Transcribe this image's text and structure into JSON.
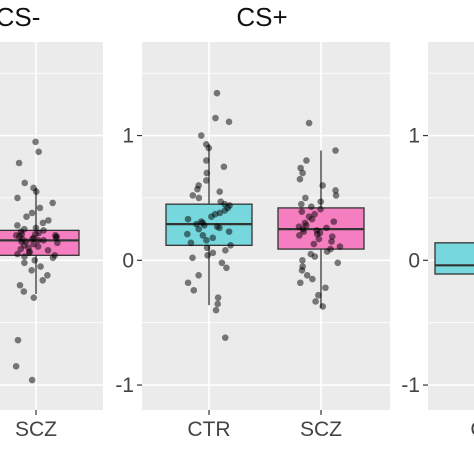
{
  "chart_data": {
    "type": "boxplot",
    "title": "",
    "xlabel": "",
    "ylabel": "",
    "ylim": [
      -1.2,
      1.75
    ],
    "y_ticks": [
      -1,
      0,
      1
    ],
    "y_tick_labels": [
      "-1",
      "0",
      "1"
    ],
    "grid": true,
    "legend": "none",
    "colors": {
      "CTR": "#76d7dc",
      "SCZ": "#f47ec0",
      "panel_bg": "#ebebeb",
      "grid": "#ffffff",
      "points": "#000000"
    },
    "panels": [
      {
        "title": "CS-",
        "show_y_axis": false,
        "boxes": [
          {
            "category": "SCZ",
            "group": "SCZ",
            "lower_whisker": -0.27,
            "q1": 0.04,
            "median": 0.16,
            "q3": 0.24,
            "upper_whisker": 0.58,
            "points": [
              0.95,
              0.87,
              0.78,
              0.62,
              0.58,
              0.55,
              0.5,
              0.46,
              0.42,
              0.38,
              0.35,
              0.32,
              0.3,
              0.28,
              0.26,
              0.25,
              0.24,
              0.23,
              0.22,
              0.21,
              0.21,
              0.2,
              0.2,
              0.19,
              0.19,
              0.18,
              0.18,
              0.17,
              0.17,
              0.16,
              0.16,
              0.15,
              0.15,
              0.14,
              0.13,
              0.12,
              0.11,
              0.1,
              0.09,
              0.08,
              0.07,
              0.06,
              0.05,
              0.04,
              0.03,
              0.02,
              0.0,
              -0.02,
              -0.05,
              -0.08,
              -0.12,
              -0.16,
              -0.2,
              -0.25,
              -0.3,
              -0.64,
              -0.85,
              -0.96
            ]
          }
        ]
      },
      {
        "title": "CS+",
        "show_y_axis": true,
        "boxes": [
          {
            "category": "CTR",
            "group": "CTR",
            "lower_whisker": -0.36,
            "q1": 0.12,
            "median": 0.29,
            "q3": 0.45,
            "upper_whisker": 0.93,
            "points": [
              1.34,
              1.14,
              1.11,
              1.0,
              0.93,
              0.9,
              0.8,
              0.75,
              0.7,
              0.64,
              0.6,
              0.57,
              0.55,
              0.52,
              0.5,
              0.47,
              0.45,
              0.44,
              0.42,
              0.4,
              0.38,
              0.37,
              0.35,
              0.33,
              0.31,
              0.3,
              0.29,
              0.28,
              0.27,
              0.26,
              0.25,
              0.23,
              0.21,
              0.2,
              0.18,
              0.16,
              0.14,
              0.12,
              0.1,
              0.08,
              0.06,
              0.04,
              0.02,
              -0.02,
              -0.06,
              -0.12,
              -0.18,
              -0.24,
              -0.3,
              -0.35,
              -0.4,
              -0.62
            ]
          },
          {
            "category": "SCZ",
            "group": "SCZ",
            "lower_whisker": -0.38,
            "q1": 0.09,
            "median": 0.25,
            "q3": 0.42,
            "upper_whisker": 0.88,
            "points": [
              1.1,
              0.88,
              0.8,
              0.74,
              0.7,
              0.65,
              0.6,
              0.56,
              0.52,
              0.5,
              0.47,
              0.45,
              0.43,
              0.41,
              0.39,
              0.37,
              0.35,
              0.33,
              0.31,
              0.3,
              0.28,
              0.27,
              0.26,
              0.25,
              0.24,
              0.23,
              0.22,
              0.21,
              0.2,
              0.19,
              0.17,
              0.15,
              0.13,
              0.11,
              0.09,
              0.07,
              0.05,
              0.03,
              0.0,
              -0.02,
              -0.05,
              -0.08,
              -0.12,
              -0.15,
              -0.18,
              -0.22,
              -0.28,
              -0.33,
              -0.37
            ]
          }
        ]
      },
      {
        "title": "",
        "show_y_axis": true,
        "boxes": [
          {
            "category": "C",
            "group": "CTR",
            "lower_whisker": -0.13,
            "q1": -0.11,
            "median": -0.04,
            "q3": 0.14,
            "upper_whisker": 0.14,
            "points": []
          }
        ]
      }
    ]
  }
}
